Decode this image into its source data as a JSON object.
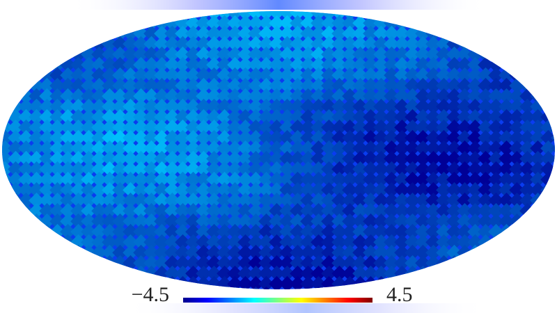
{
  "colorbar": {
    "min": {
      "value": -4.5,
      "label": "−4.5"
    },
    "max": 4.5
  }
}
